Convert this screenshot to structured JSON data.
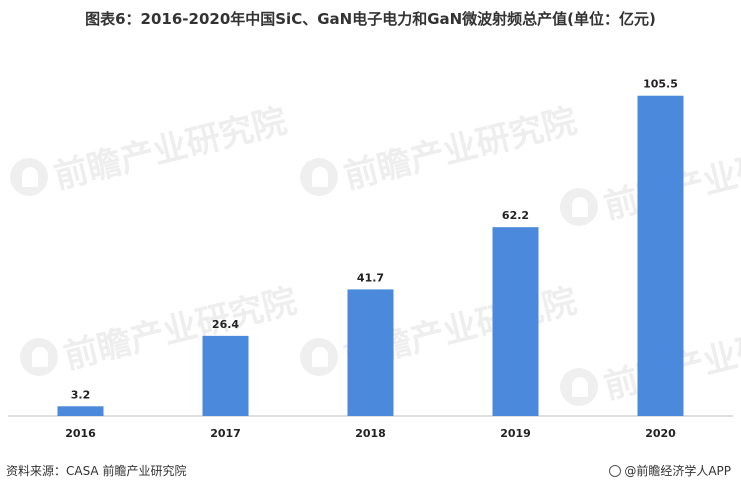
{
  "title": "图表6：2016-2020年中国SiC、GaN电子电力和GaN微波射频总产值(单位：亿元)",
  "watermark_text": "前瞻产业研究院",
  "footer": {
    "source": "资料来源：CASA 前瞻产业研究院",
    "brand": "@前瞻经济学人APP"
  },
  "colors": {
    "bar": "#4a89dc",
    "axis": "#bfbfbf"
  },
  "chart_data": {
    "type": "bar",
    "title": "图表6：2016-2020年中国SiC、GaN电子电力和GaN微波射频总产值(单位：亿元)",
    "categories": [
      "2016",
      "2017",
      "2018",
      "2019",
      "2020"
    ],
    "values": [
      3.2,
      26.4,
      41.7,
      62.2,
      105.5
    ],
    "value_labels": [
      "3.2",
      "26.4",
      "41.7",
      "62.2",
      "105.5"
    ],
    "xlabel": "",
    "ylabel": "",
    "ylim": [
      0,
      112
    ],
    "grid": false,
    "legend": "none",
    "data_labels": true
  }
}
